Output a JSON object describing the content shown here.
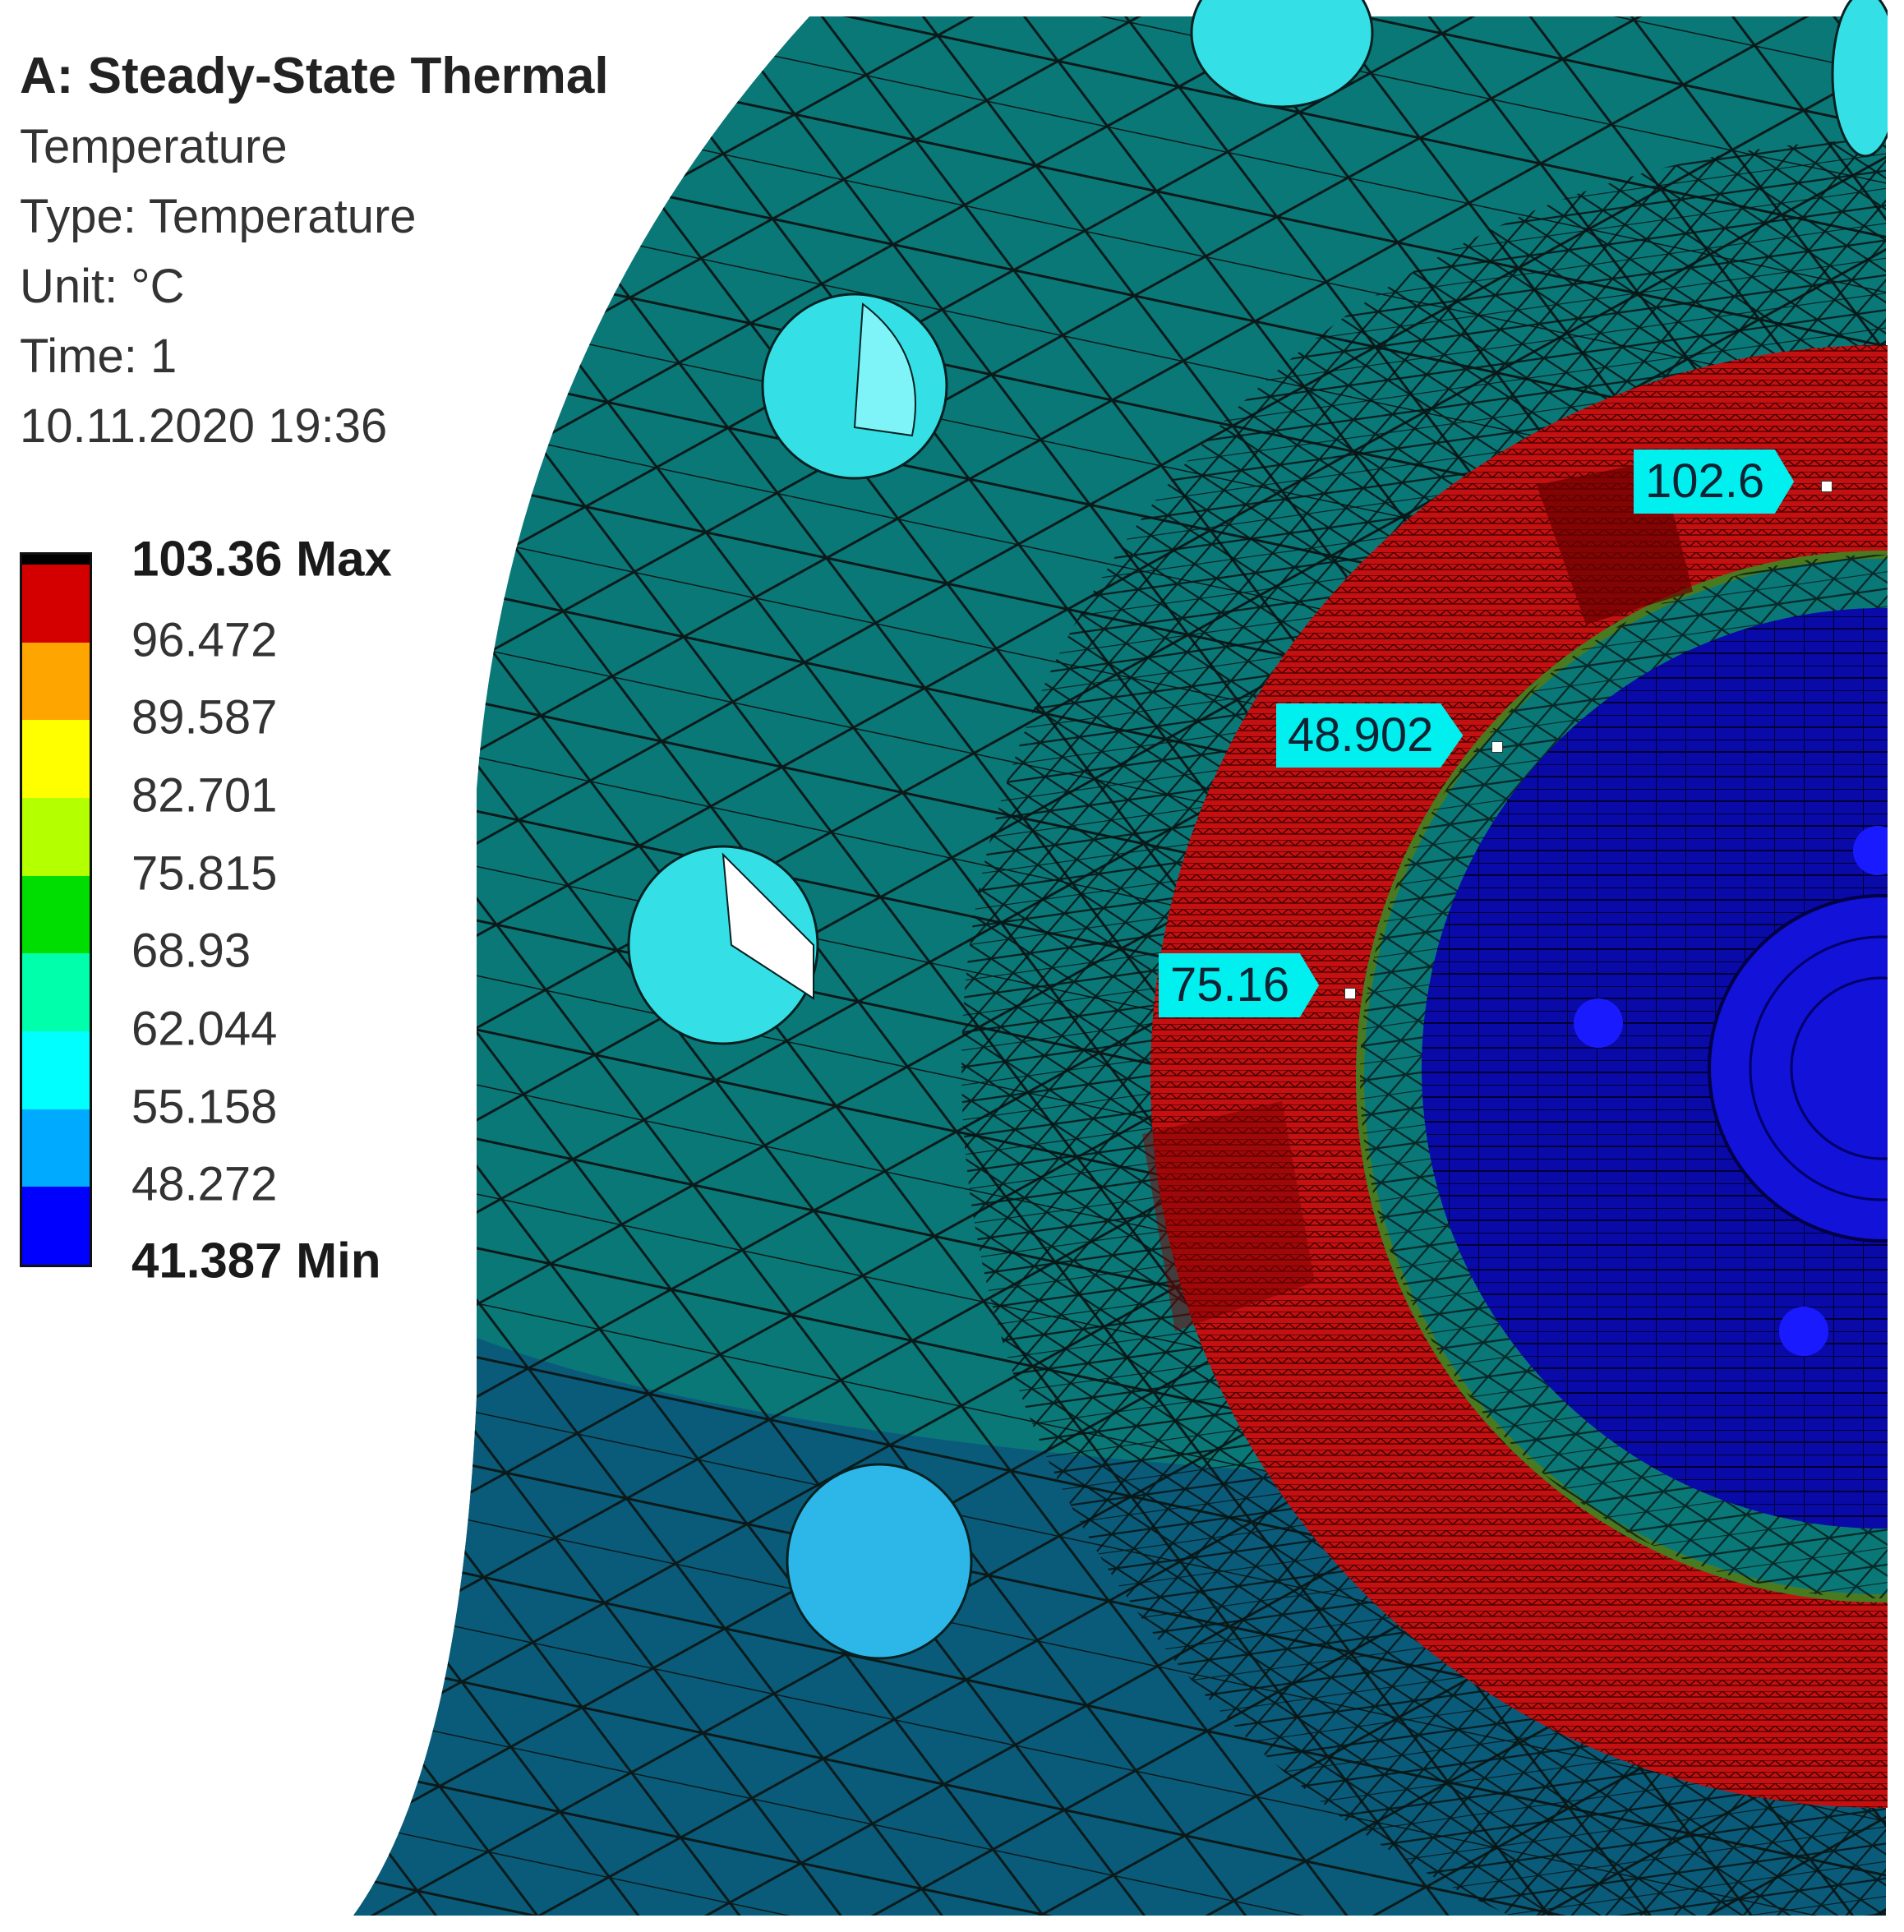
{
  "info": {
    "title": "A: Steady-State Thermal",
    "result": "Temperature",
    "type": "Type: Temperature",
    "unit": "Unit: °C",
    "time": "Time: 1",
    "date": "10.11.2020 19:36"
  },
  "legend": {
    "labels": [
      "103.36 Max",
      "96.472",
      "89.587",
      "82.701",
      "75.815",
      "68.93",
      "62.044",
      "55.158",
      "48.272",
      "41.387 Min"
    ],
    "colors": [
      "#d40000",
      "#ffa500",
      "#ffff00",
      "#b4ff00",
      "#00dd00",
      "#00ffaa",
      "#00ffff",
      "#00aaff",
      "#0000ff"
    ],
    "top_color": "#000000"
  },
  "probes": [
    {
      "value": "102.6"
    },
    {
      "value": "48.902"
    },
    {
      "value": "75.16"
    }
  ],
  "colors": {
    "plate_upper": "#0b7878",
    "plate_lower": "#0a5b7a",
    "hot_ring": "#c41010",
    "cold_core": "#0a0aa8",
    "probe_bg": "#00f0f0"
  }
}
